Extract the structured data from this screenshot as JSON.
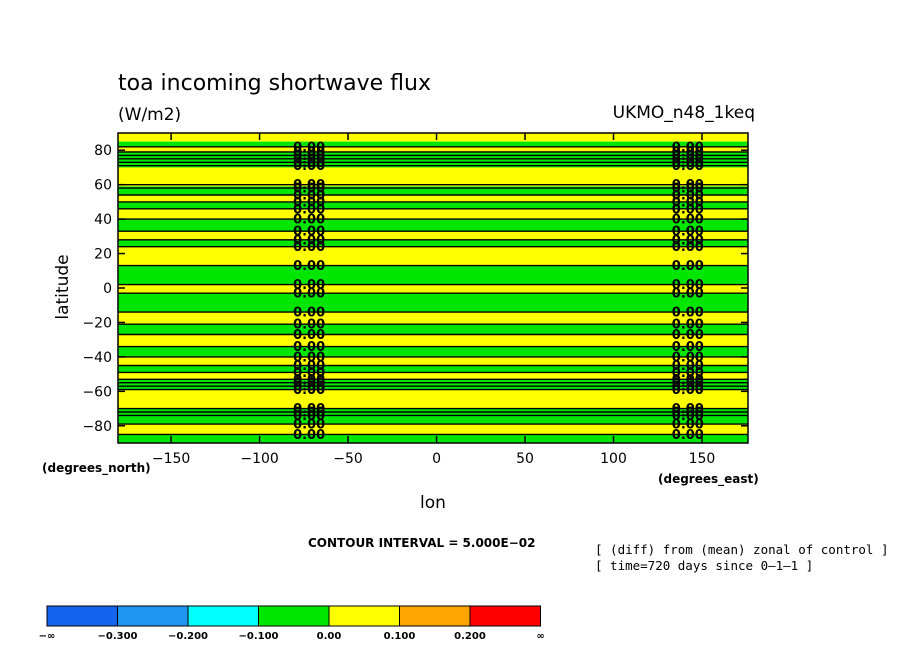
{
  "chart_data": {
    "type": "heatmap",
    "title": "toa incoming shortwave flux",
    "units": "(W/m2)",
    "model": "UKMO_n48_1keq",
    "xlabel": "lon",
    "ylabel": "latitude",
    "x_unit_label": "(degrees_east)",
    "y_unit_label": "(degrees_north)",
    "xlim": [
      -180,
      176
    ],
    "ylim": [
      -90,
      90
    ],
    "x_ticks": [
      -150,
      -100,
      -50,
      0,
      50,
      100,
      150
    ],
    "y_ticks": [
      80,
      60,
      40,
      20,
      0,
      -20,
      -40,
      -60,
      -80
    ],
    "x_tick_labels": [
      "−150",
      "−100",
      "−50",
      "0",
      "50",
      "100",
      "150"
    ],
    "y_tick_labels": [
      "80",
      "60",
      "40",
      "20",
      "0",
      "−20",
      "−40",
      "−60",
      "−80"
    ],
    "contour_interval_text": "CONTOUR INTERVAL = 5.000E−02",
    "notes": [
      "[ (diff) from (mean) zonal of control ]",
      "[ time=720 days since 0–1–1 ]"
    ],
    "contour_label": "0.00",
    "contour_label_lons": [
      -72,
      142
    ],
    "bands": [
      {
        "lat_from": 90,
        "lat_to": 85,
        "color": "yellow"
      },
      {
        "lat_from": 85,
        "lat_to": 82,
        "color": "green"
      },
      {
        "lat_from": 82,
        "lat_to": 79,
        "color": "yellow"
      },
      {
        "lat_from": 79,
        "lat_to": 70,
        "color": "green"
      },
      {
        "lat_from": 70,
        "lat_to": 59,
        "color": "yellow"
      },
      {
        "lat_from": 59,
        "lat_to": 54,
        "color": "green"
      },
      {
        "lat_from": 54,
        "lat_to": 50,
        "color": "yellow"
      },
      {
        "lat_from": 50,
        "lat_to": 46,
        "color": "green"
      },
      {
        "lat_from": 46,
        "lat_to": 40,
        "color": "yellow"
      },
      {
        "lat_from": 40,
        "lat_to": 33,
        "color": "green"
      },
      {
        "lat_from": 33,
        "lat_to": 28,
        "color": "yellow"
      },
      {
        "lat_from": 28,
        "lat_to": 24,
        "color": "green"
      },
      {
        "lat_from": 24,
        "lat_to": 13,
        "color": "yellow"
      },
      {
        "lat_from": 13,
        "lat_to": 2,
        "color": "green"
      },
      {
        "lat_from": 2,
        "lat_to": -3,
        "color": "yellow"
      },
      {
        "lat_from": -3,
        "lat_to": -14,
        "color": "green"
      },
      {
        "lat_from": -14,
        "lat_to": -21,
        "color": "yellow"
      },
      {
        "lat_from": -21,
        "lat_to": -27,
        "color": "green"
      },
      {
        "lat_from": -27,
        "lat_to": -34,
        "color": "yellow"
      },
      {
        "lat_from": -34,
        "lat_to": -40,
        "color": "green"
      },
      {
        "lat_from": -40,
        "lat_to": -45,
        "color": "yellow"
      },
      {
        "lat_from": -45,
        "lat_to": -49,
        "color": "green"
      },
      {
        "lat_from": -49,
        "lat_to": -53,
        "color": "yellow"
      },
      {
        "lat_from": -53,
        "lat_to": -59,
        "color": "green"
      },
      {
        "lat_from": -59,
        "lat_to": -70,
        "color": "yellow"
      },
      {
        "lat_from": -70,
        "lat_to": -79,
        "color": "green"
      },
      {
        "lat_from": -79,
        "lat_to": -85,
        "color": "yellow"
      },
      {
        "lat_from": -85,
        "lat_to": -90,
        "color": "green"
      }
    ],
    "contour_lats": [
      82,
      79,
      77,
      75,
      73,
      71,
      60,
      58,
      54,
      50,
      46,
      40,
      33,
      28,
      24,
      13,
      2,
      -3,
      -14,
      -21,
      -27,
      -34,
      -40,
      -45,
      -49,
      -53,
      -55,
      -57,
      -59,
      -70,
      -72,
      -74,
      -79,
      -85
    ],
    "colorbar": {
      "colors": [
        "#1464f0",
        "#1e96f0",
        "#00ffff",
        "#00e600",
        "#ffff00",
        "#ffa500",
        "#ff0000"
      ],
      "labels": [
        "−∞",
        "−0.300",
        "−0.200",
        "−0.100",
        "0.00",
        "0.100",
        "0.200",
        "∞"
      ]
    },
    "palette": {
      "green": "#00e600",
      "yellow": "#ffff00"
    }
  }
}
